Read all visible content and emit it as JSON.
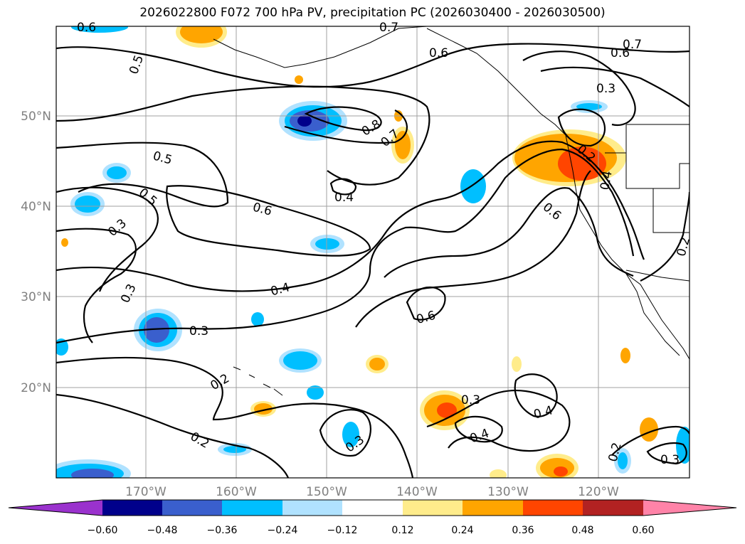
{
  "title": "2026022800 F072 700 hPa PV, precipitation PC (2026030400 - 2026030500)",
  "map": {
    "lat_labels": [
      "50°N",
      "40°N",
      "30°N",
      "20°N"
    ],
    "lon_labels": [
      "170°W",
      "160°W",
      "150°W",
      "140°W",
      "130°W",
      "120°W"
    ]
  },
  "colorbar": {
    "ticks": [
      "−0.60",
      "−0.48",
      "−0.36",
      "−0.24",
      "−0.12",
      "0.12",
      "0.24",
      "0.36",
      "0.48",
      "0.60"
    ],
    "colors": [
      "#9a32cd",
      "#00008b",
      "#3a5fcd",
      "#00bfff",
      "#b0e2ff",
      "#ffffff",
      "#ffec8b",
      "#ffa500",
      "#ff4500",
      "#b22222",
      "#ff83a8"
    ]
  },
  "pv_contour_labels": [
    "0.6",
    "0.5",
    "0.7",
    "0.6",
    "0.7",
    "0.6",
    "0.3",
    "0.8",
    "0.7",
    "0.2",
    "0.5",
    "0.4",
    "0.5",
    "0.4",
    "0.6",
    "0.6",
    "0.3",
    "0.2",
    "0.3",
    "0.4",
    "0.3",
    "0.6",
    "0.2",
    "0.3",
    "0.4",
    "0.4",
    "0.2",
    "0.3",
    "0.2",
    "0.3"
  ]
}
